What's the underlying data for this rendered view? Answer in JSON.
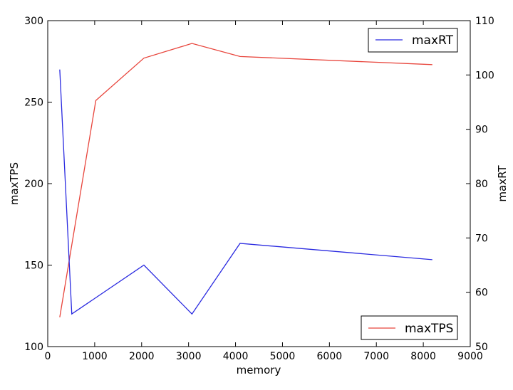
{
  "chart_data": {
    "type": "line",
    "title": "",
    "xlabel": "memory",
    "ylabel": "maxTPS",
    "y2label": "maxRT",
    "xlim": [
      0,
      9000
    ],
    "ylim": [
      100,
      300
    ],
    "y2lim": [
      50,
      110
    ],
    "xticks": [
      0,
      1000,
      2000,
      3000,
      4000,
      5000,
      6000,
      7000,
      8000,
      9000
    ],
    "yticks": [
      100,
      150,
      200,
      250,
      300
    ],
    "y2ticks": [
      50,
      60,
      70,
      80,
      90,
      100,
      110
    ],
    "grid": false,
    "series": [
      {
        "name": "maxTPS",
        "axis": "left",
        "color": "#e8453c",
        "x": [
          256,
          1024,
          2048,
          3072,
          4096,
          8192
        ],
        "y": [
          118,
          251,
          277,
          286,
          278,
          273
        ],
        "legend_position": "lower-right"
      },
      {
        "name": "maxRT",
        "axis": "right",
        "color": "#2a2ae0",
        "x": [
          256,
          512,
          2048,
          3072,
          4096,
          8192
        ],
        "y": [
          101,
          56,
          65,
          56,
          69,
          66
        ],
        "legend_position": "upper-right"
      }
    ]
  }
}
